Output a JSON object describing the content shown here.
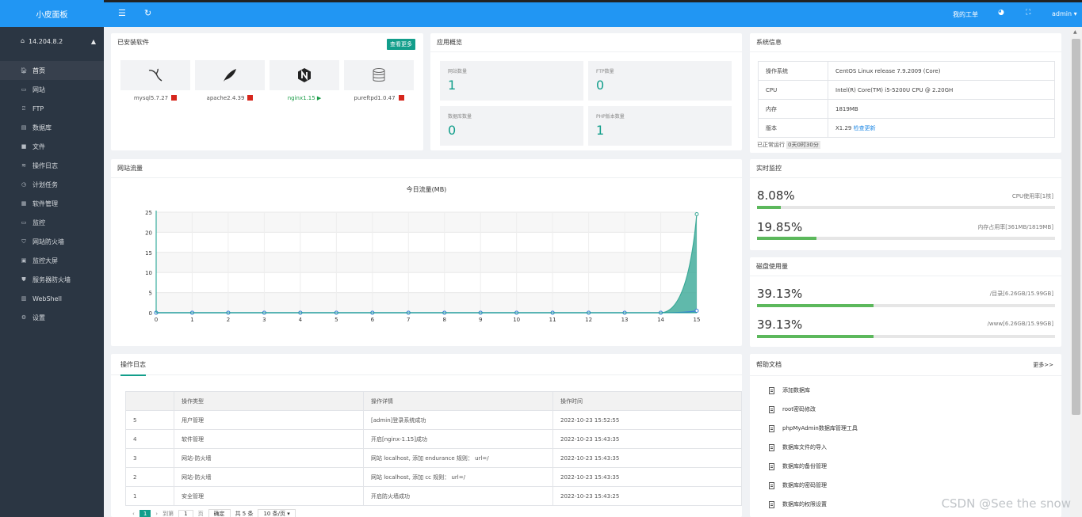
{
  "app": {
    "title": "小皮面板",
    "server_ip": "14.204.8.2"
  },
  "sidebar": {
    "items": [
      {
        "label": "首页",
        "icon": "home-icon"
      },
      {
        "label": "网站",
        "icon": "monitor-icon"
      },
      {
        "label": "FTP",
        "icon": "ftp-icon"
      },
      {
        "label": "数据库",
        "icon": "database-icon"
      },
      {
        "label": "文件",
        "icon": "folder-icon"
      },
      {
        "label": "操作日志",
        "icon": "log-icon"
      },
      {
        "label": "计划任务",
        "icon": "clock-icon"
      },
      {
        "label": "软件管理",
        "icon": "grid-icon"
      },
      {
        "label": "监控",
        "icon": "monitor-icon"
      },
      {
        "label": "网站防火墙",
        "icon": "shield-icon"
      },
      {
        "label": "监控大屏",
        "icon": "screen-icon"
      },
      {
        "label": "服务器防火墙",
        "icon": "shield-icon"
      },
      {
        "label": "WebShell",
        "icon": "terminal-icon"
      },
      {
        "label": "设置",
        "icon": "gear-icon"
      }
    ]
  },
  "topbar": {
    "tickets": "我的工单",
    "user": "admin"
  },
  "installed": {
    "title": "已安装软件",
    "more": "查看更多",
    "items": [
      {
        "name": "mysql5.7.27",
        "status": "stopped"
      },
      {
        "name": "apache2.4.39",
        "status": "stopped"
      },
      {
        "name": "nginx1.15",
        "status": "running"
      },
      {
        "name": "pureftpd1.0.47",
        "status": "stopped"
      }
    ]
  },
  "overview": {
    "title": "应用概览",
    "cards": [
      {
        "label": "网站数量",
        "value": "1"
      },
      {
        "label": "FTP数量",
        "value": "0"
      },
      {
        "label": "数据库数量",
        "value": "0"
      },
      {
        "label": "PHP版本数量",
        "value": "1"
      }
    ]
  },
  "sysinfo": {
    "title": "系统信息",
    "rows": [
      {
        "k": "操作系统",
        "v": "CentOS Linux release 7.9.2009 (Core)"
      },
      {
        "k": "CPU",
        "v": "Intel(R) Core(TM) i5-5200U CPU @ 2.20GH"
      },
      {
        "k": "内存",
        "v": "1819MB"
      },
      {
        "k": "版本",
        "v": "X1.29"
      }
    ],
    "check_update": "检查更新",
    "uptime_label": "已正常运行",
    "uptime_value": "0天0时30分"
  },
  "traffic": {
    "title": "网站流量"
  },
  "realtime": {
    "title": "实时监控",
    "cpu_value": "8.08%",
    "cpu_fraction": 0.0808,
    "cpu_label": "CPU使用率[1核]",
    "mem_value": "19.85%",
    "mem_fraction": 0.1985,
    "mem_label": "内存占用率[361MB/1819MB]"
  },
  "disk": {
    "title": "磁盘使用量",
    "items": [
      {
        "value": "39.13%",
        "fraction": 0.3913,
        "label": "/目录[6.26GB/15.99GB]"
      },
      {
        "value": "39.13%",
        "fraction": 0.3913,
        "label": "/www[6.26GB/15.99GB]"
      }
    ]
  },
  "logs": {
    "tab": "操作日志",
    "headers": [
      "",
      "操作类型",
      "操作详情",
      "操作时间"
    ],
    "rows": [
      [
        "5",
        "用户管理",
        "[admin]登录系统成功",
        "2022-10-23 15:52:55"
      ],
      [
        "4",
        "软件管理",
        "开启[nginx-1.15]成功",
        "2022-10-23 15:43:35"
      ],
      [
        "3",
        "网站-防火墙",
        "网站 localhost, 添加 endurance 规则： url=/",
        "2022-10-23 15:43:35"
      ],
      [
        "2",
        "网站-防火墙",
        "网站 localhost, 添加 cc 规则： url=/",
        "2022-10-23 15:43:35"
      ],
      [
        "1",
        "安全管理",
        "开启防火墙成功",
        "2022-10-23 15:43:25"
      ]
    ],
    "pager": {
      "prev": "‹",
      "page": "1",
      "next": "›",
      "goto": "到第",
      "goto_value": "1",
      "page_unit": "页",
      "confirm": "确定",
      "total": "共 5 条",
      "per_page": "10 条/页"
    }
  },
  "help": {
    "title": "帮助文档",
    "more": "更多>>",
    "items": [
      "添加数据库",
      "root密码修改",
      "phpMyAdmin数据库管理工具",
      "数据库文件的导入",
      "数据库的备份管理",
      "数据库的密码管理",
      "数据库的权限设置"
    ]
  },
  "watermark": "CSDN @See the snow",
  "chart_data": {
    "type": "area",
    "title": "今日流量(MB)",
    "categories": [
      0,
      1,
      2,
      3,
      4,
      5,
      6,
      7,
      8,
      9,
      10,
      11,
      12,
      13,
      14,
      15
    ],
    "ylim": [
      0,
      25
    ],
    "yticks": [
      0,
      5,
      10,
      15,
      20,
      25
    ],
    "grid": true,
    "series": [
      {
        "values": [
          0,
          0,
          0,
          0,
          0,
          0,
          0,
          0,
          0,
          0,
          0,
          0,
          0,
          0,
          0,
          24.5
        ],
        "color": "#3aa997"
      },
      {
        "values": [
          0,
          0,
          0,
          0,
          0,
          0,
          0,
          0,
          0,
          0,
          0,
          0,
          0,
          0,
          0,
          0.5
        ],
        "color": "#3b7dd8"
      }
    ]
  }
}
